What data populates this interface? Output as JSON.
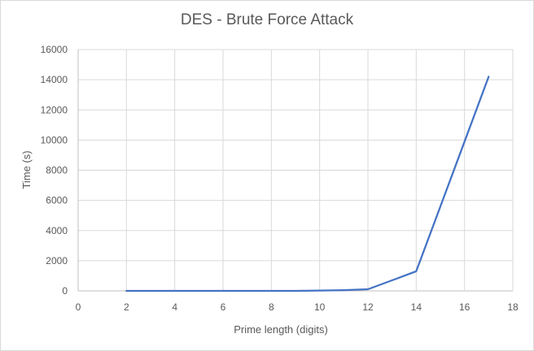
{
  "chart_data": {
    "type": "line",
    "title": "DES - Brute Force Attack",
    "xlabel": "Prime length (digits)",
    "ylabel": "Time (s)",
    "xlim": [
      0,
      18
    ],
    "ylim": [
      0,
      16000
    ],
    "x_ticks": [
      0,
      2,
      4,
      6,
      8,
      10,
      12,
      14,
      16,
      18
    ],
    "y_ticks": [
      0,
      2000,
      4000,
      6000,
      8000,
      10000,
      12000,
      14000,
      16000
    ],
    "grid": true,
    "legend": "none",
    "series": [
      {
        "color": "#4472c4",
        "x": [
          2,
          3,
          4,
          5,
          6,
          7,
          8,
          9,
          10,
          11,
          12,
          13,
          14,
          15,
          16,
          17
        ],
        "y": [
          0,
          0,
          0,
          0,
          0,
          0,
          0,
          0,
          20,
          50,
          110,
          700,
          1300,
          5600,
          9900,
          14200
        ]
      }
    ]
  }
}
